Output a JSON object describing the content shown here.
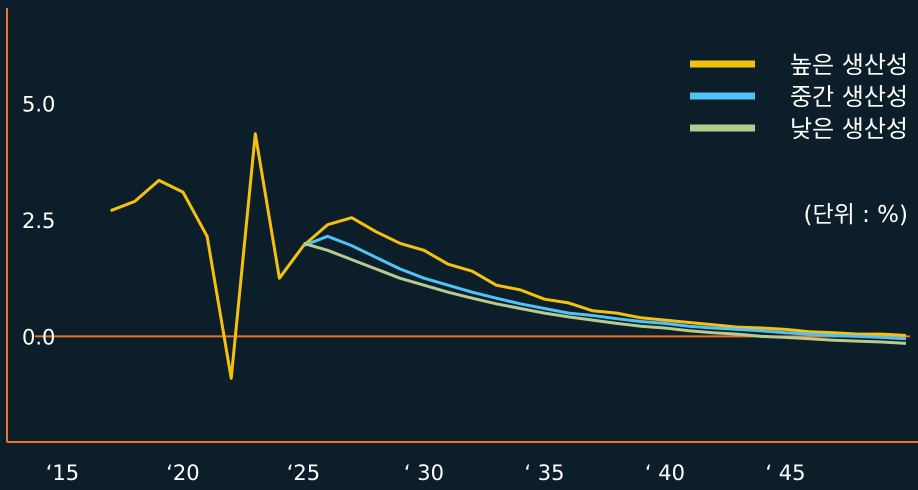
{
  "chart_data": {
    "type": "line",
    "title": "",
    "xlabel": "",
    "ylabel": "",
    "unit_note": "(단위 : %)",
    "x_ticks": [
      {
        "x": 2015,
        "label": "‘15"
      },
      {
        "x": 2020,
        "label": "‘20"
      },
      {
        "x": 2025,
        "label": "‘25"
      },
      {
        "x": 2030,
        "label": "‘ 30"
      },
      {
        "x": 2035,
        "label": "‘ 35"
      },
      {
        "x": 2040,
        "label": "‘ 40"
      },
      {
        "x": 2045,
        "label": "‘ 45"
      }
    ],
    "y_ticks": [
      {
        "y": 5.0,
        "label": "5.0"
      },
      {
        "y": 2.5,
        "label": "2.5"
      },
      {
        "y": 0.0,
        "label": "0.0"
      }
    ],
    "xlim": [
      2014.4,
      2050.5
    ],
    "ylim": [
      -1.0,
      6.0
    ],
    "grid": false,
    "legend_position": "top-right",
    "zero_line_color": "#e8732a",
    "axis_color": "#e8732a",
    "series": [
      {
        "name": "높은 생산성",
        "color": "#f5c10f",
        "x": [
          2017,
          2018,
          2019,
          2020,
          2021,
          2022,
          2023,
          2024,
          2025,
          2026,
          2027,
          2028,
          2029,
          2030,
          2031,
          2032,
          2033,
          2034,
          2035,
          2036,
          2037,
          2038,
          2039,
          2040,
          2041,
          2042,
          2043,
          2044,
          2045,
          2046,
          2047,
          2048,
          2049,
          2050
        ],
        "values": [
          2.7,
          2.9,
          3.35,
          3.1,
          2.15,
          -0.9,
          4.35,
          1.25,
          1.95,
          2.4,
          2.55,
          2.25,
          2.0,
          1.85,
          1.55,
          1.4,
          1.1,
          1.0,
          0.8,
          0.72,
          0.55,
          0.5,
          0.4,
          0.35,
          0.3,
          0.25,
          0.2,
          0.18,
          0.15,
          0.1,
          0.08,
          0.05,
          0.05,
          0.02
        ]
      },
      {
        "name": "중간 생산성",
        "color": "#4fc3f7",
        "x": [
          2025,
          2026,
          2027,
          2028,
          2029,
          2030,
          2031,
          2032,
          2033,
          2034,
          2035,
          2036,
          2037,
          2038,
          2039,
          2040,
          2041,
          2042,
          2043,
          2044,
          2045,
          2046,
          2047,
          2048,
          2049,
          2050
        ],
        "values": [
          1.95,
          2.15,
          1.95,
          1.7,
          1.45,
          1.25,
          1.1,
          0.95,
          0.82,
          0.7,
          0.6,
          0.5,
          0.45,
          0.38,
          0.32,
          0.28,
          0.22,
          0.18,
          0.15,
          0.12,
          0.08,
          0.05,
          0.02,
          0.0,
          -0.02,
          -0.05
        ]
      },
      {
        "name": "낮은 생산성",
        "color": "#b5cc8e",
        "x": [
          2025,
          2026,
          2027,
          2028,
          2029,
          2030,
          2031,
          2032,
          2033,
          2034,
          2035,
          2036,
          2037,
          2038,
          2039,
          2040,
          2041,
          2042,
          2043,
          2044,
          2045,
          2046,
          2047,
          2048,
          2049,
          2050
        ],
        "values": [
          2.0,
          1.85,
          1.65,
          1.45,
          1.25,
          1.1,
          0.95,
          0.82,
          0.7,
          0.6,
          0.5,
          0.42,
          0.35,
          0.28,
          0.22,
          0.18,
          0.12,
          0.08,
          0.05,
          0.0,
          -0.02,
          -0.05,
          -0.08,
          -0.1,
          -0.12,
          -0.15
        ]
      }
    ]
  }
}
